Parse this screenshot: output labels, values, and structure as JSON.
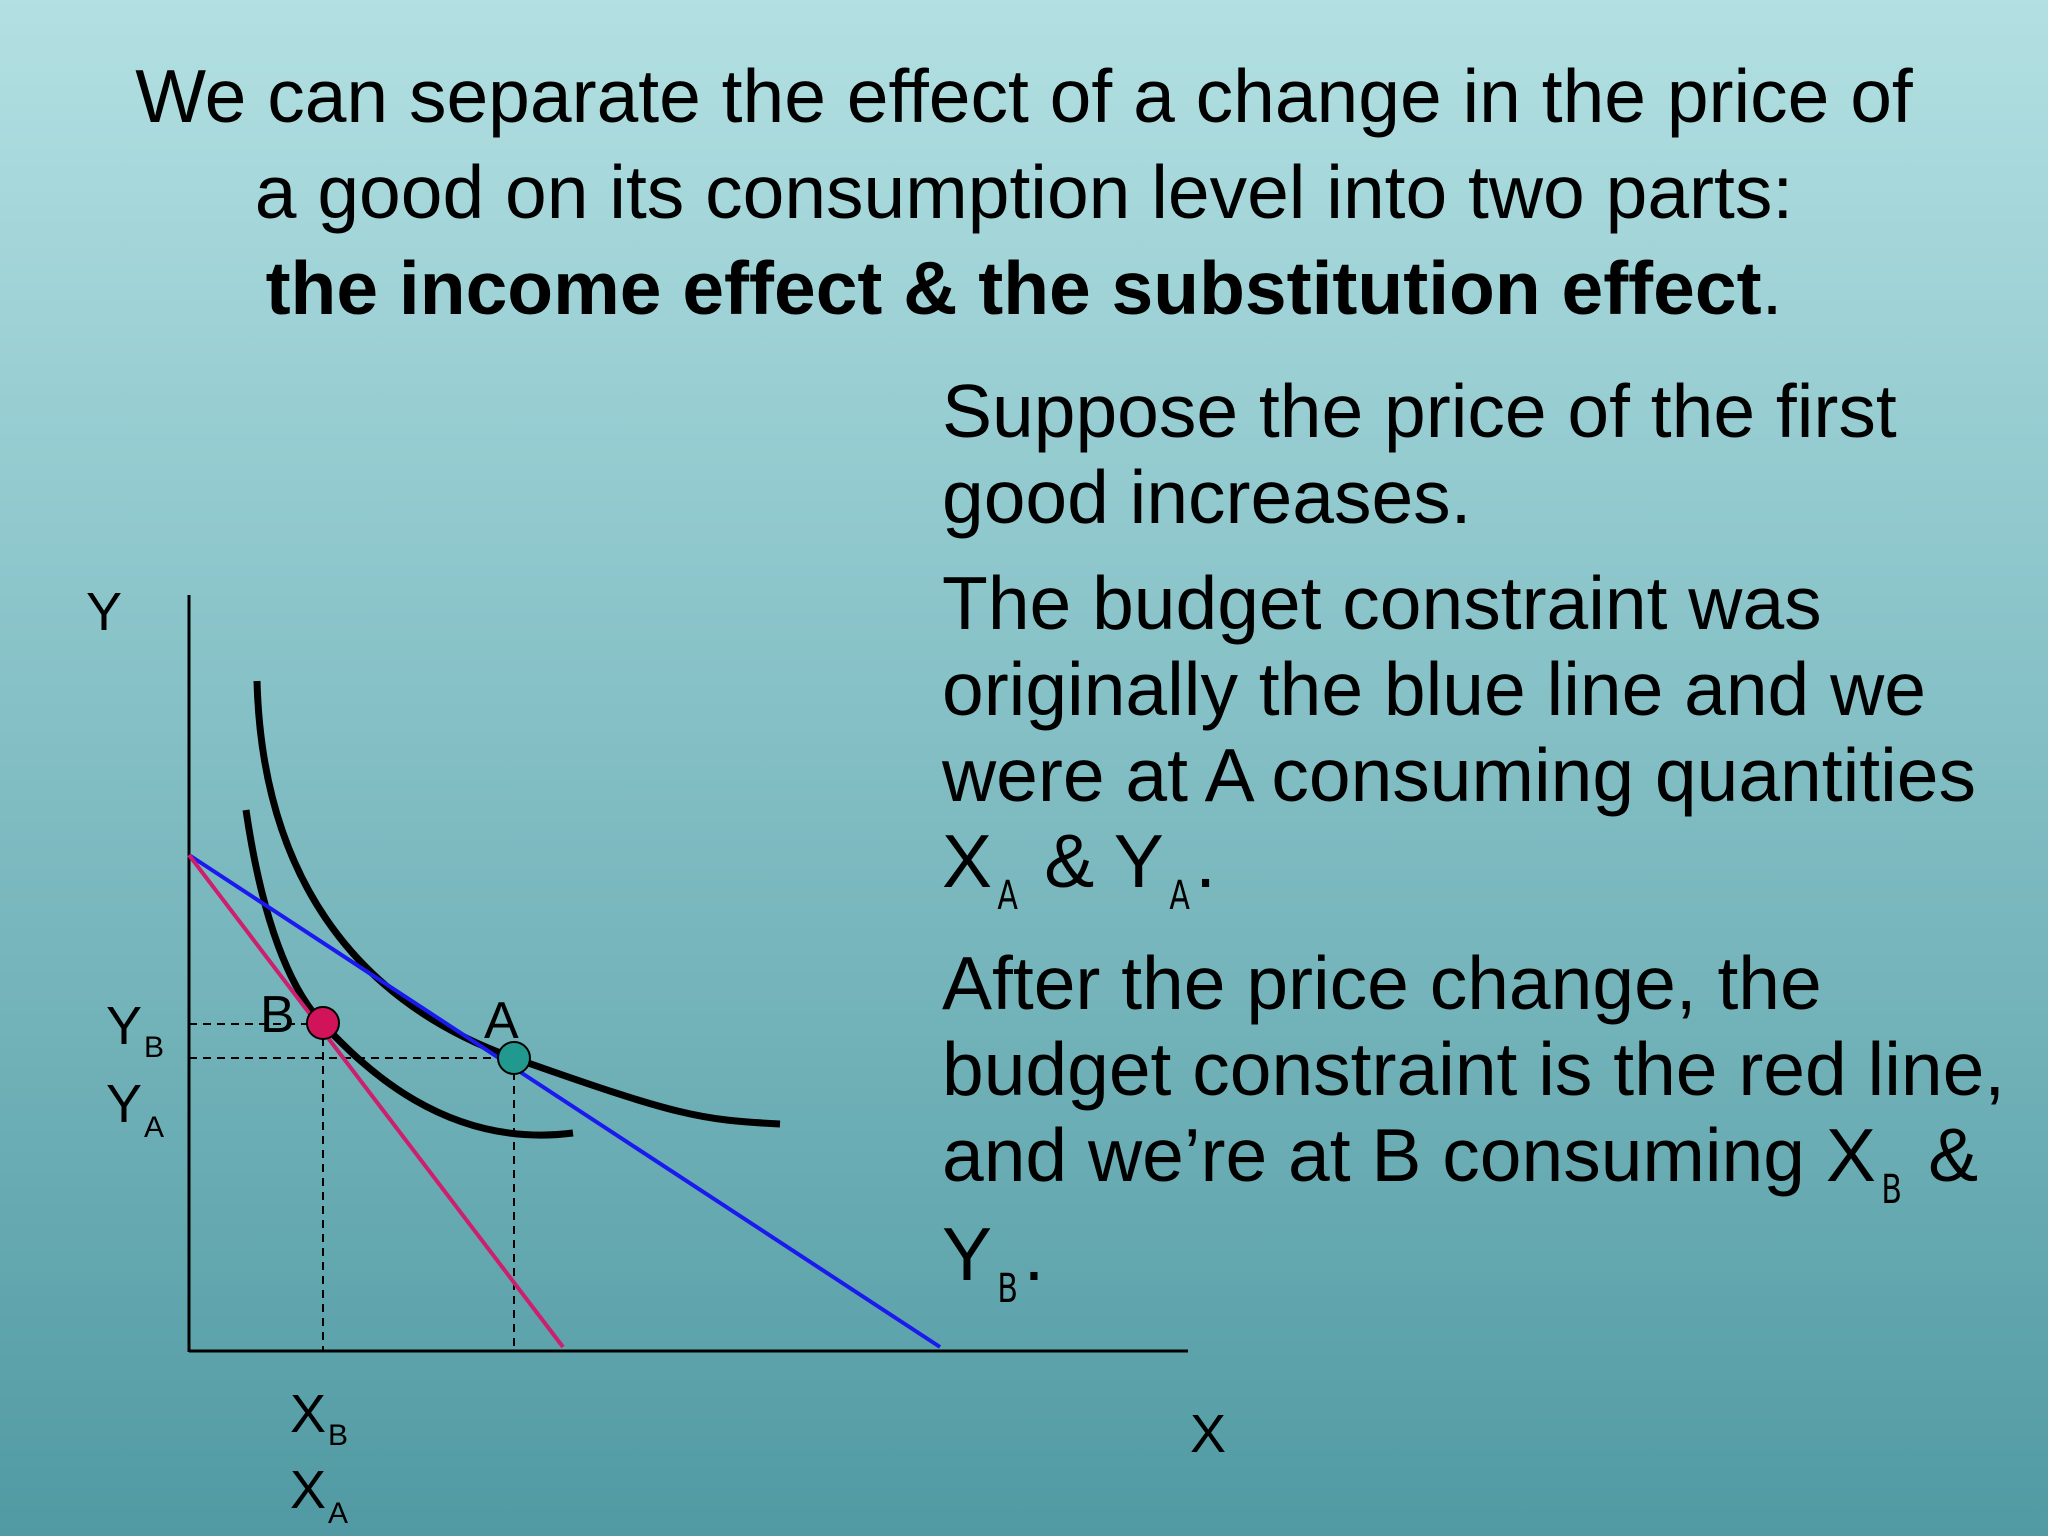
{
  "heading": {
    "line1": "We can separate the effect of a change in the price of",
    "line2": "a good on its consumption level into two parts:",
    "line3_bold": "the income effect & the substitution effect",
    "line3_end": "."
  },
  "paragraphs": {
    "p1": "Suppose the price of the first good increases.",
    "p2_text": "The budget constraint was originally the blue line and we were at A consuming quantities X",
    "p2_sub1": "A",
    "p2_mid": " & Y",
    "p2_sub2": "A",
    "p2_end": ".",
    "p3_text": "After the price change, the budget constraint is the red line, and we’re at B consuming X",
    "p3_sub1": "B",
    "p3_mid": " & Y",
    "p3_sub2": "B",
    "p3_end": "."
  },
  "diagram": {
    "y_axis_label": "Y",
    "x_axis_label": "X",
    "point_a_label": "A",
    "point_b_label": "B",
    "yb_main": "Y",
    "yb_sub": "B",
    "ya_main": "Y",
    "ya_sub": "A",
    "xb_main": "X",
    "xb_sub": "B",
    "xa_main": "X",
    "xa_sub": "A",
    "colors": {
      "original_budget_line": "#1a1aee",
      "new_budget_line": "#cc1f6e",
      "point_a": "#21998f",
      "point_b": "#d1145a",
      "indifference_curves": "#000000"
    }
  }
}
